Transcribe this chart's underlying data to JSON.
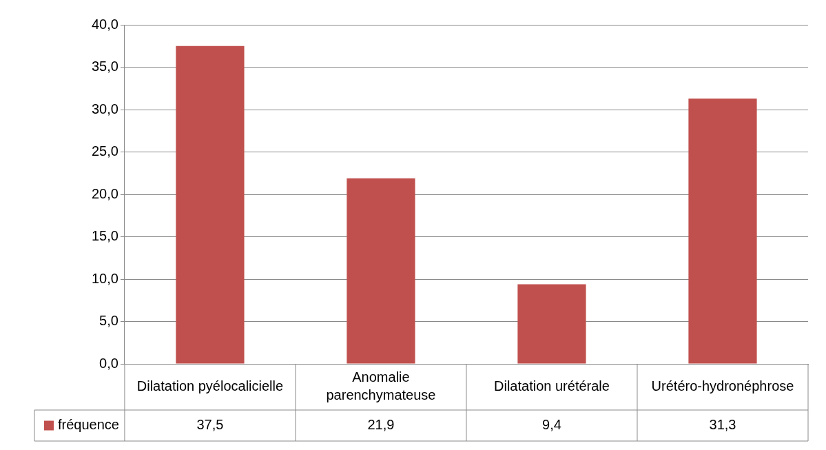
{
  "chart_data": {
    "type": "bar",
    "categories": [
      "Dilatation pyélocalicielle",
      "Anomalie parenchymateuse",
      "Dilatation urétérale",
      "Urétéro-hydronéphrose"
    ],
    "series": [
      {
        "name": "fréquence",
        "color": "#c0504d",
        "values": [
          37.5,
          21.9,
          9.4,
          31.3
        ],
        "value_labels": [
          "37,5",
          "21,9",
          "9,4",
          "31,3"
        ]
      }
    ],
    "ylim": [
      0,
      40
    ],
    "yticks": [
      {
        "value": 0,
        "label": "0,0"
      },
      {
        "value": 5,
        "label": "5,0"
      },
      {
        "value": 10,
        "label": "10,0"
      },
      {
        "value": 15,
        "label": "15,0"
      },
      {
        "value": 20,
        "label": "20,0"
      },
      {
        "value": 25,
        "label": "25,0"
      },
      {
        "value": 30,
        "label": "30,0"
      },
      {
        "value": 35,
        "label": "35,0"
      },
      {
        "value": 40,
        "label": "40,0"
      }
    ],
    "grid": "y",
    "legend": "bottom"
  }
}
